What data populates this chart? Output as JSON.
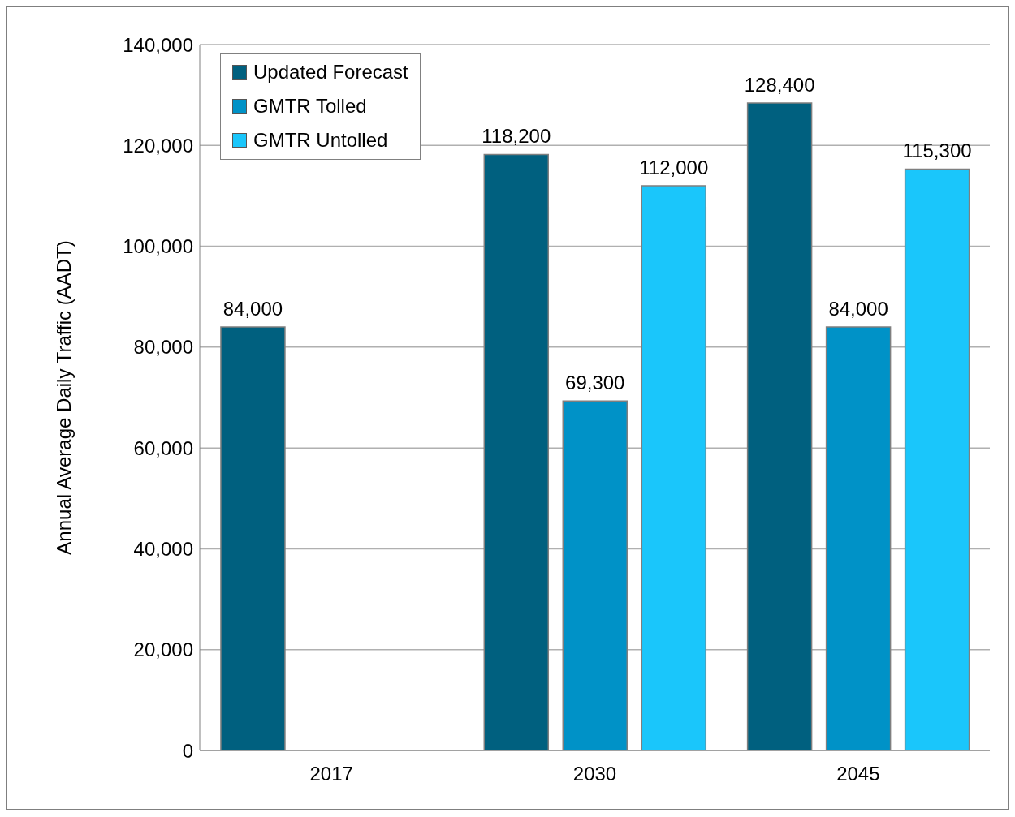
{
  "chart_data": {
    "type": "bar",
    "ylabel": "Annual Average Daily Traffic (AADT)",
    "categories": [
      "2017",
      "2030",
      "2045"
    ],
    "series": [
      {
        "name": "Updated Forecast",
        "color": "#00607f",
        "values": [
          84000,
          118200,
          128400
        ],
        "value_labels": [
          "84,000",
          "118,200",
          "128,400"
        ]
      },
      {
        "name": "GMTR Tolled",
        "color": "#0092c7",
        "values": [
          null,
          69300,
          84000
        ],
        "value_labels": [
          null,
          "69,300",
          "84,000"
        ]
      },
      {
        "name": "GMTR Untolled",
        "color": "#1ac6fb",
        "values": [
          null,
          112000,
          115300
        ],
        "value_labels": [
          null,
          "112,000",
          "115,300"
        ]
      }
    ],
    "ylim": [
      0,
      140000
    ],
    "yticks": [
      0,
      {
        "value": 20000,
        "label": "20,000"
      },
      {
        "value": 40000,
        "label": "40,000"
      },
      {
        "value": 60000,
        "label": "60,000"
      },
      {
        "value": 80000,
        "label": "80,000"
      },
      {
        "value": 100000,
        "label": "100,000"
      },
      {
        "value": 120000,
        "label": "120,000"
      },
      {
        "value": 140000,
        "label": "140,000"
      }
    ],
    "grid": "y",
    "legend": "top left"
  }
}
